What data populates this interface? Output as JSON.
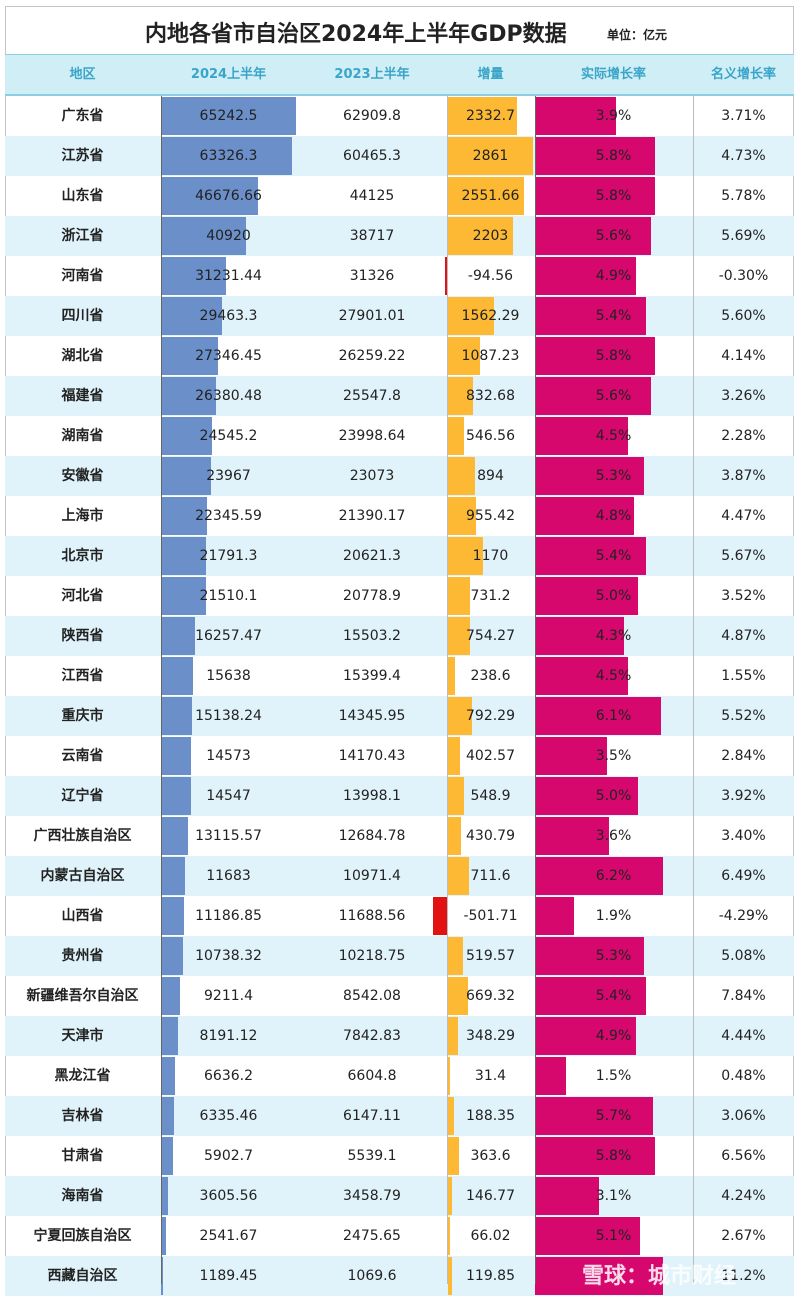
{
  "title": "内地各省市自治区2024年上半年GDP数据",
  "unit": "单位：亿元",
  "watermark": "雪球：城市财经",
  "colors": {
    "header_bg": "#d0eef6",
    "header_text": "#3aa5c8",
    "row_alt": "#e0f3fa",
    "gdp_bar": "#6a8fc9",
    "increase_bar": "#fdb933",
    "decrease_bar": "#e31212",
    "growth_bar": "#d6086e"
  },
  "chart_data": {
    "type": "table",
    "columns": [
      "地区",
      "2024上半年",
      "2023上半年",
      "增量",
      "实际增长率",
      "名义增长率"
    ],
    "rows": [
      {
        "region": "广东省",
        "gdp_2024h1": "65242.5",
        "gdp_2023h1": "62909.8",
        "increase": "2332.7",
        "real_growth": "3.9%",
        "nominal_growth": "3.71%"
      },
      {
        "region": "江苏省",
        "gdp_2024h1": "63326.3",
        "gdp_2023h1": "60465.3",
        "increase": "2861",
        "real_growth": "5.8%",
        "nominal_growth": "4.73%"
      },
      {
        "region": "山东省",
        "gdp_2024h1": "46676.66",
        "gdp_2023h1": "44125",
        "increase": "2551.66",
        "real_growth": "5.8%",
        "nominal_growth": "5.78%"
      },
      {
        "region": "浙江省",
        "gdp_2024h1": "40920",
        "gdp_2023h1": "38717",
        "increase": "2203",
        "real_growth": "5.6%",
        "nominal_growth": "5.69%"
      },
      {
        "region": "河南省",
        "gdp_2024h1": "31231.44",
        "gdp_2023h1": "31326",
        "increase": "-94.56",
        "real_growth": "4.9%",
        "nominal_growth": "-0.30%"
      },
      {
        "region": "四川省",
        "gdp_2024h1": "29463.3",
        "gdp_2023h1": "27901.01",
        "increase": "1562.29",
        "real_growth": "5.4%",
        "nominal_growth": "5.60%"
      },
      {
        "region": "湖北省",
        "gdp_2024h1": "27346.45",
        "gdp_2023h1": "26259.22",
        "increase": "1087.23",
        "real_growth": "5.8%",
        "nominal_growth": "4.14%"
      },
      {
        "region": "福建省",
        "gdp_2024h1": "26380.48",
        "gdp_2023h1": "25547.8",
        "increase": "832.68",
        "real_growth": "5.6%",
        "nominal_growth": "3.26%"
      },
      {
        "region": "湖南省",
        "gdp_2024h1": "24545.2",
        "gdp_2023h1": "23998.64",
        "increase": "546.56",
        "real_growth": "4.5%",
        "nominal_growth": "2.28%"
      },
      {
        "region": "安徽省",
        "gdp_2024h1": "23967",
        "gdp_2023h1": "23073",
        "increase": "894",
        "real_growth": "5.3%",
        "nominal_growth": "3.87%"
      },
      {
        "region": "上海市",
        "gdp_2024h1": "22345.59",
        "gdp_2023h1": "21390.17",
        "increase": "955.42",
        "real_growth": "4.8%",
        "nominal_growth": "4.47%"
      },
      {
        "region": "北京市",
        "gdp_2024h1": "21791.3",
        "gdp_2023h1": "20621.3",
        "increase": "1170",
        "real_growth": "5.4%",
        "nominal_growth": "5.67%"
      },
      {
        "region": "河北省",
        "gdp_2024h1": "21510.1",
        "gdp_2023h1": "20778.9",
        "increase": "731.2",
        "real_growth": "5.0%",
        "nominal_growth": "3.52%"
      },
      {
        "region": "陕西省",
        "gdp_2024h1": "16257.47",
        "gdp_2023h1": "15503.2",
        "increase": "754.27",
        "real_growth": "4.3%",
        "nominal_growth": "4.87%"
      },
      {
        "region": "江西省",
        "gdp_2024h1": "15638",
        "gdp_2023h1": "15399.4",
        "increase": "238.6",
        "real_growth": "4.5%",
        "nominal_growth": "1.55%"
      },
      {
        "region": "重庆市",
        "gdp_2024h1": "15138.24",
        "gdp_2023h1": "14345.95",
        "increase": "792.29",
        "real_growth": "6.1%",
        "nominal_growth": "5.52%"
      },
      {
        "region": "云南省",
        "gdp_2024h1": "14573",
        "gdp_2023h1": "14170.43",
        "increase": "402.57",
        "real_growth": "3.5%",
        "nominal_growth": "2.84%"
      },
      {
        "region": "辽宁省",
        "gdp_2024h1": "14547",
        "gdp_2023h1": "13998.1",
        "increase": "548.9",
        "real_growth": "5.0%",
        "nominal_growth": "3.92%"
      },
      {
        "region": "广西壮族自治区",
        "gdp_2024h1": "13115.57",
        "gdp_2023h1": "12684.78",
        "increase": "430.79",
        "real_growth": "3.6%",
        "nominal_growth": "3.40%"
      },
      {
        "region": "内蒙古自治区",
        "gdp_2024h1": "11683",
        "gdp_2023h1": "10971.4",
        "increase": "711.6",
        "real_growth": "6.2%",
        "nominal_growth": "6.49%"
      },
      {
        "region": "山西省",
        "gdp_2024h1": "11186.85",
        "gdp_2023h1": "11688.56",
        "increase": "-501.71",
        "real_growth": "1.9%",
        "nominal_growth": "-4.29%"
      },
      {
        "region": "贵州省",
        "gdp_2024h1": "10738.32",
        "gdp_2023h1": "10218.75",
        "increase": "519.57",
        "real_growth": "5.3%",
        "nominal_growth": "5.08%"
      },
      {
        "region": "新疆维吾尔自治区",
        "gdp_2024h1": "9211.4",
        "gdp_2023h1": "8542.08",
        "increase": "669.32",
        "real_growth": "5.4%",
        "nominal_growth": "7.84%"
      },
      {
        "region": "天津市",
        "gdp_2024h1": "8191.12",
        "gdp_2023h1": "7842.83",
        "increase": "348.29",
        "real_growth": "4.9%",
        "nominal_growth": "4.44%"
      },
      {
        "region": "黑龙江省",
        "gdp_2024h1": "6636.2",
        "gdp_2023h1": "6604.8",
        "increase": "31.4",
        "real_growth": "1.5%",
        "nominal_growth": "0.48%"
      },
      {
        "region": "吉林省",
        "gdp_2024h1": "6335.46",
        "gdp_2023h1": "6147.11",
        "increase": "188.35",
        "real_growth": "5.7%",
        "nominal_growth": "3.06%"
      },
      {
        "region": "甘肃省",
        "gdp_2024h1": "5902.7",
        "gdp_2023h1": "5539.1",
        "increase": "363.6",
        "real_growth": "5.8%",
        "nominal_growth": "6.56%"
      },
      {
        "region": "海南省",
        "gdp_2024h1": "3605.56",
        "gdp_2023h1": "3458.79",
        "increase": "146.77",
        "real_growth": "3.1%",
        "nominal_growth": "4.24%"
      },
      {
        "region": "宁夏回族自治区",
        "gdp_2024h1": "2541.67",
        "gdp_2023h1": "2475.65",
        "increase": "66.02",
        "real_growth": "5.1%",
        "nominal_growth": "2.67%"
      },
      {
        "region": "西藏自治区",
        "gdp_2024h1": "1189.45",
        "gdp_2023h1": "1069.6",
        "increase": "119.85",
        "real_growth": "",
        "nominal_growth": "11.2%"
      }
    ]
  }
}
